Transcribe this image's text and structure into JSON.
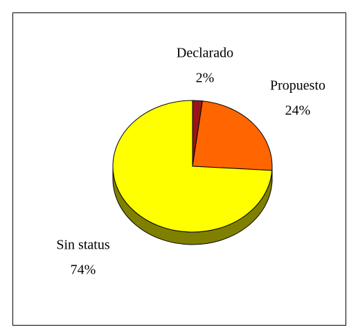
{
  "chart_data": {
    "type": "pie",
    "categories": [
      "Declarado",
      "Propuesto",
      "Sin status"
    ],
    "values": [
      2,
      24,
      74
    ],
    "value_labels": [
      "2%",
      "24%",
      "74%"
    ],
    "colors": [
      "#99141a",
      "#ff6600",
      "#ffff00"
    ]
  }
}
